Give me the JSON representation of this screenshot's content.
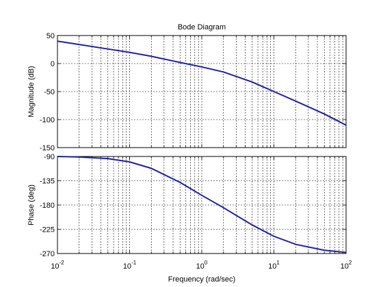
{
  "chart_data": [
    {
      "type": "line",
      "title": "Bode Diagram",
      "xlabel": "",
      "ylabel": "Magnitude (dB)",
      "xscale": "log",
      "xlim": [
        0.01,
        100
      ],
      "ylim": [
        -150,
        50
      ],
      "yticks": [
        50,
        0,
        -50,
        -100,
        -150
      ],
      "xtick_labels": [],
      "grid": true,
      "line_color": "#1f1f9f",
      "series": [
        {
          "x": [
            0.01,
            0.02,
            0.05,
            0.1,
            0.2,
            0.5,
            1,
            2,
            5,
            10,
            20,
            50,
            100
          ],
          "values": [
            40,
            34,
            26,
            20,
            13,
            2,
            -6,
            -15,
            -33,
            -50,
            -67,
            -90,
            -110
          ]
        }
      ]
    },
    {
      "type": "line",
      "title": "",
      "xlabel": "Frequency  (rad/sec)",
      "ylabel": "Phase (deg)",
      "xscale": "log",
      "xlim": [
        0.01,
        100
      ],
      "ylim": [
        -270,
        -90
      ],
      "yticks": [
        -90,
        -135,
        -180,
        -225,
        -270
      ],
      "xtick_labels": [
        {
          "base": "10",
          "exp": "-2"
        },
        {
          "base": "10",
          "exp": "-1"
        },
        {
          "base": "10",
          "exp": "0"
        },
        {
          "base": "10",
          "exp": "1"
        },
        {
          "base": "10",
          "exp": "2"
        }
      ],
      "grid": true,
      "line_color": "#1f1f9f",
      "series": [
        {
          "x": [
            0.01,
            0.02,
            0.05,
            0.1,
            0.2,
            0.5,
            1,
            2,
            5,
            10,
            20,
            50,
            100
          ],
          "values": [
            -90,
            -91,
            -94,
            -100,
            -112,
            -138,
            -162,
            -185,
            -217,
            -238,
            -253,
            -264,
            -268
          ]
        }
      ]
    }
  ]
}
